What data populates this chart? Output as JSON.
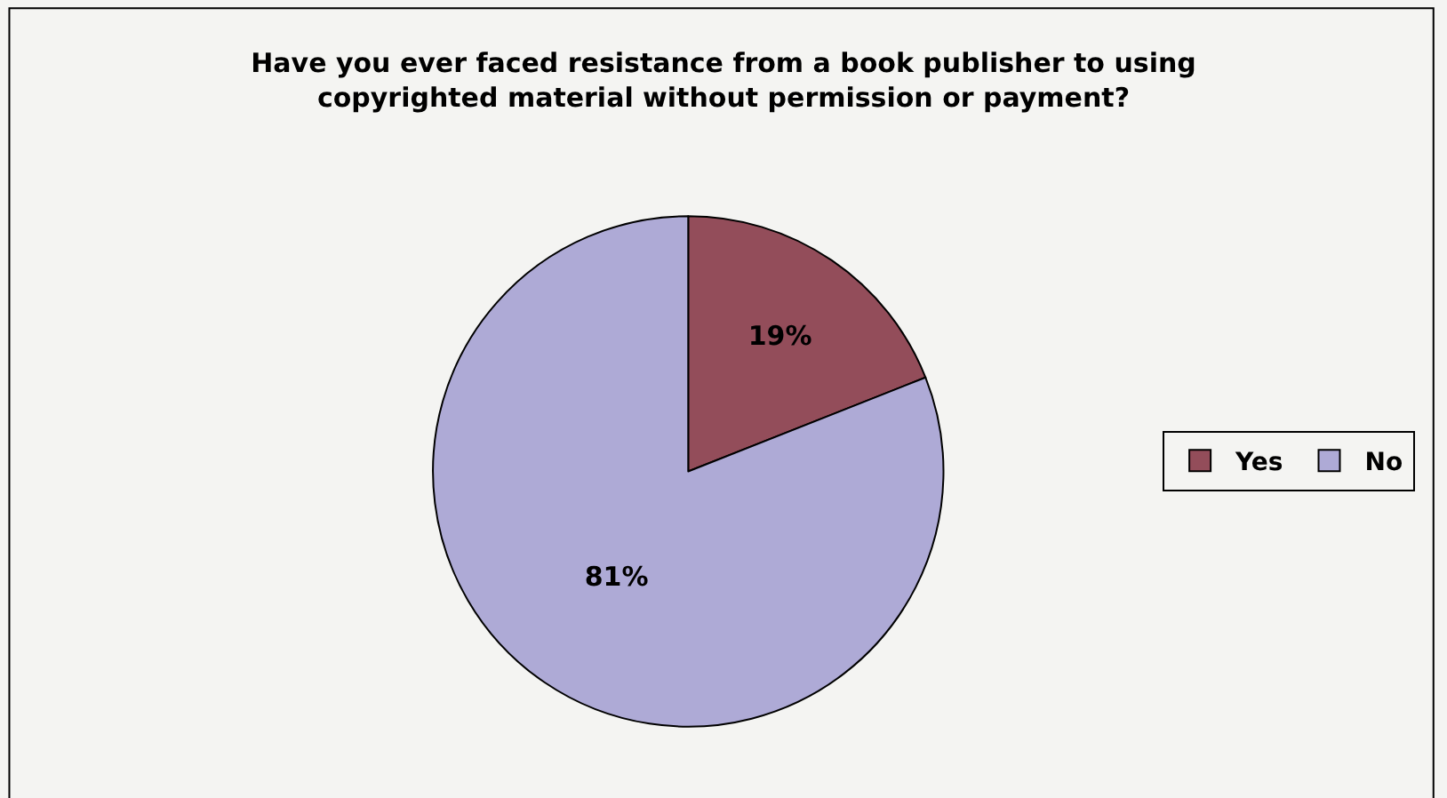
{
  "chart_data": {
    "type": "pie",
    "title": "Have you ever faced resistance from a book publisher to using copyrighted material without permission or payment?",
    "categories": [
      "Yes",
      "No"
    ],
    "values": [
      19,
      81
    ],
    "colors": [
      "#934d5a",
      "#aeaad6"
    ],
    "value_labels": [
      "19%",
      "81%"
    ],
    "legend": "right"
  }
}
